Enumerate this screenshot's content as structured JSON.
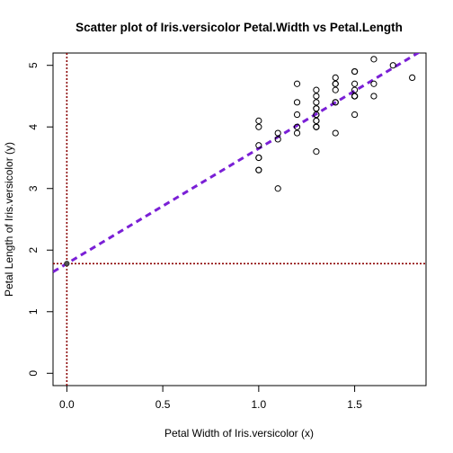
{
  "chart_data": {
    "type": "scatter",
    "title": "Scatter plot of Iris.versicolor Petal.Width vs Petal.Length",
    "xlabel": "Petal Width of Iris.versicolor (x)",
    "ylabel": "Petal Length of Iris.versicolor (y)",
    "xlim": [
      -0.072,
      1.872
    ],
    "ylim": [
      -0.2,
      5.2
    ],
    "xticks": [
      0.0,
      0.5,
      1.0,
      1.5
    ],
    "xtick_labels": [
      "0.0",
      "0.5",
      "1.0",
      "1.5"
    ],
    "yticks": [
      0,
      1,
      2,
      3,
      4,
      5
    ],
    "ytick_labels": [
      "0",
      "1",
      "2",
      "3",
      "4",
      "5"
    ],
    "grid": false,
    "legend": "none",
    "points": {
      "x": [
        1.4,
        1.5,
        1.5,
        1.3,
        1.5,
        1.3,
        1.6,
        1.0,
        1.3,
        1.4,
        1.0,
        1.5,
        1.0,
        1.4,
        1.3,
        1.4,
        1.5,
        1.0,
        1.5,
        1.1,
        1.8,
        1.3,
        1.5,
        1.2,
        1.3,
        1.4,
        1.4,
        1.7,
        1.5,
        1.0,
        1.1,
        1.0,
        1.2,
        1.6,
        1.5,
        1.6,
        1.5,
        1.3,
        1.3,
        1.3,
        1.2,
        1.4,
        1.2,
        1.0,
        1.3,
        1.2,
        1.3,
        1.3,
        1.1,
        1.3
      ],
      "y": [
        4.7,
        4.5,
        4.9,
        4.0,
        4.6,
        4.5,
        4.7,
        3.3,
        4.6,
        3.9,
        3.5,
        4.2,
        4.0,
        4.7,
        3.6,
        4.4,
        4.5,
        4.1,
        4.5,
        3.9,
        4.8,
        4.0,
        4.9,
        4.7,
        4.3,
        4.4,
        4.8,
        5.0,
        4.5,
        3.5,
        3.8,
        3.7,
        3.9,
        5.1,
        4.5,
        4.5,
        4.7,
        4.4,
        4.1,
        4.0,
        4.4,
        4.6,
        4.0,
        3.3,
        4.2,
        4.2,
        4.2,
        4.3,
        3.0,
        4.1
      ],
      "marker": "open-circle",
      "color": "#000000"
    },
    "regression_line": {
      "intercept": 1.781,
      "slope": 1.869,
      "color": "#7a1fd6",
      "style": "dashed"
    },
    "reference_lines": {
      "vertical_x": 0.0,
      "horizontal_y": 1.781,
      "color": "#8b0000",
      "style": "dotted"
    }
  }
}
